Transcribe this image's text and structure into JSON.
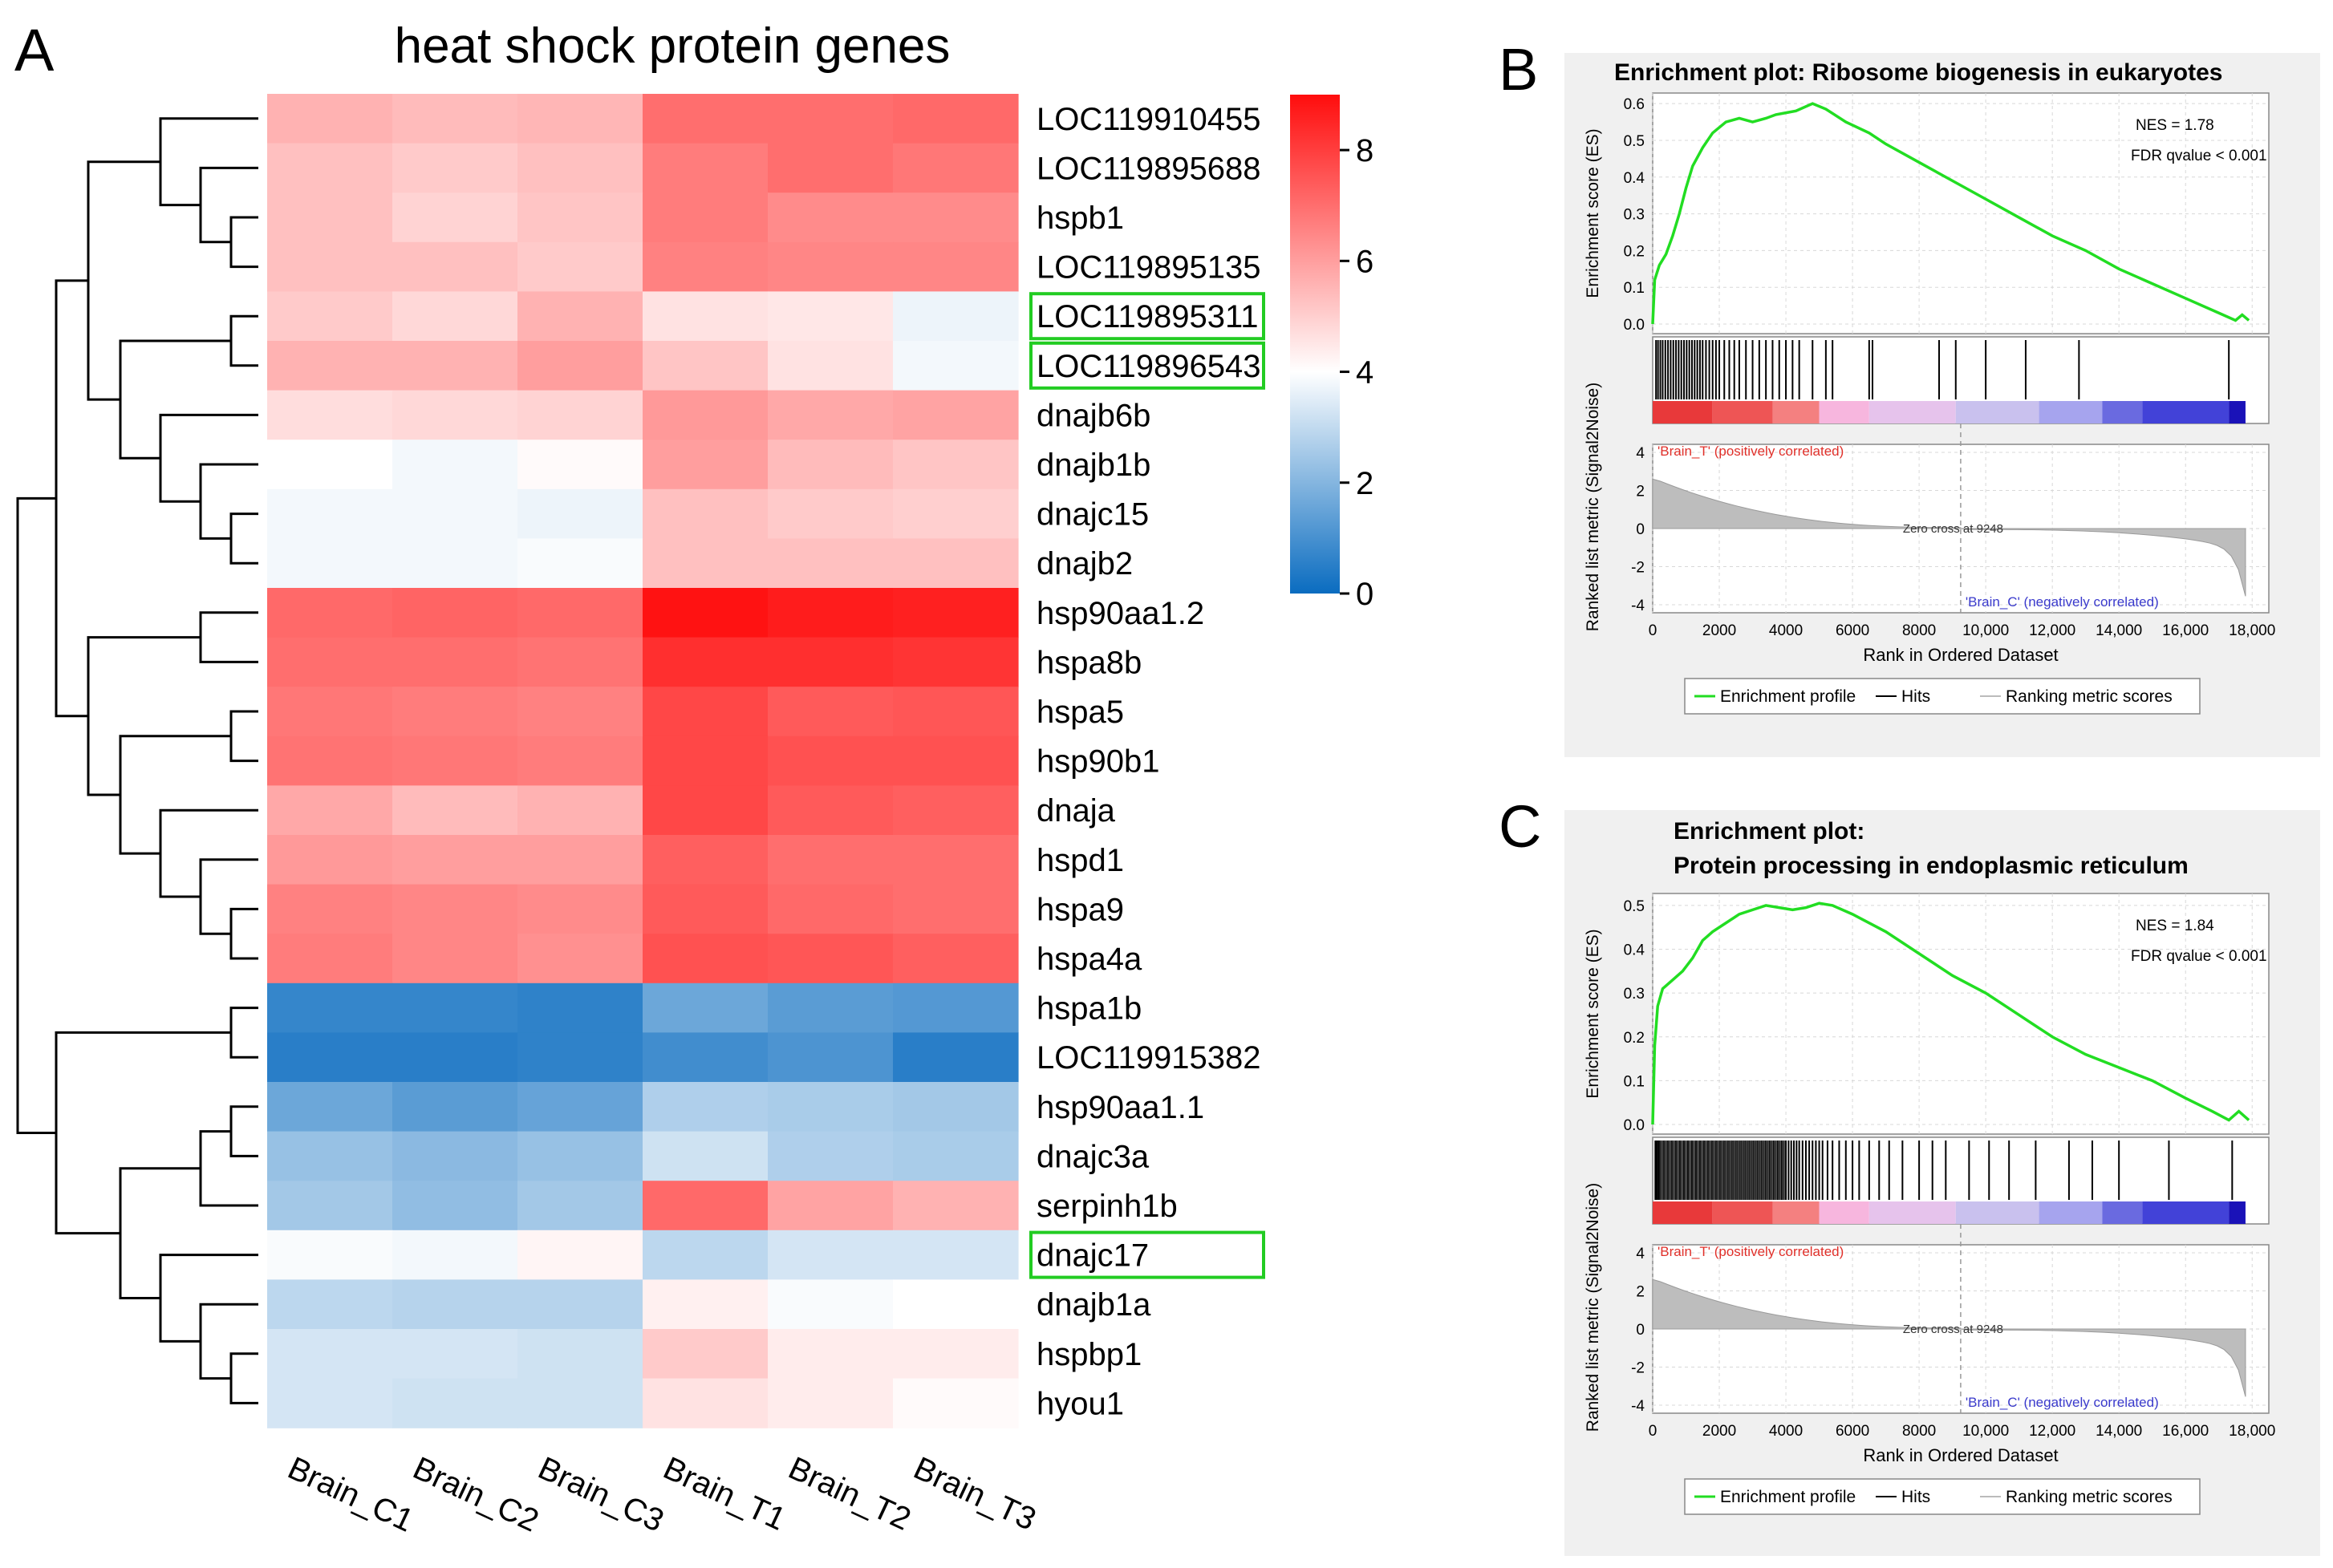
{
  "panel_a": {
    "letter": "A",
    "title": "heat shock protein genes",
    "samples": [
      "Brain_C1",
      "Brain_C2",
      "Brain_C3",
      "Brain_T1",
      "Brain_T2",
      "Brain_T3"
    ],
    "colorbar_ticks": [
      "0",
      "2",
      "4",
      "6",
      "8"
    ],
    "colorbar_range": [
      0,
      9
    ],
    "colors": {
      "low": "#0a6cc0",
      "mid": "#ffffff",
      "high": "#ff0d0d",
      "highlight": "#22cc22"
    },
    "genes": [
      {
        "name": "LOC119910455",
        "values": [
          5.6,
          5.4,
          5.5,
          7.0,
          7.0,
          7.1
        ],
        "highlight": false
      },
      {
        "name": "LOC119895688",
        "values": [
          5.3,
          5.1,
          5.3,
          6.7,
          7.0,
          6.8
        ],
        "highlight": false
      },
      {
        "name": "hspb1",
        "values": [
          5.3,
          4.9,
          5.2,
          6.7,
          6.4,
          6.4
        ],
        "highlight": false
      },
      {
        "name": "LOC119895135",
        "values": [
          5.3,
          5.3,
          5.1,
          6.6,
          6.5,
          6.5
        ],
        "highlight": false
      },
      {
        "name": "LOC119895311",
        "values": [
          5.1,
          4.8,
          5.6,
          4.6,
          4.5,
          3.7
        ],
        "highlight": true
      },
      {
        "name": "LOC119896543",
        "values": [
          5.6,
          5.6,
          6.0,
          5.2,
          4.6,
          3.8
        ],
        "highlight": true
      },
      {
        "name": "dnajb6b",
        "values": [
          4.7,
          4.8,
          4.9,
          6.1,
          5.8,
          5.9
        ],
        "highlight": false
      },
      {
        "name": "dnajb1b",
        "values": [
          4.0,
          3.8,
          4.1,
          6.0,
          5.4,
          5.2
        ],
        "highlight": false
      },
      {
        "name": "dnajc15",
        "values": [
          3.8,
          3.8,
          3.7,
          5.3,
          5.1,
          5.0
        ],
        "highlight": false
      },
      {
        "name": "dnajb2",
        "values": [
          3.8,
          3.8,
          3.9,
          5.3,
          5.3,
          5.3
        ],
        "highlight": false
      },
      {
        "name": "hsp90aa1.2",
        "values": [
          7.1,
          7.2,
          7.1,
          8.9,
          8.7,
          8.6
        ],
        "highlight": false
      },
      {
        "name": "hspa8b",
        "values": [
          7.0,
          7.0,
          6.9,
          8.3,
          8.3,
          8.2
        ],
        "highlight": false
      },
      {
        "name": "hspa5",
        "values": [
          6.8,
          6.7,
          6.6,
          7.8,
          7.4,
          7.5
        ],
        "highlight": false
      },
      {
        "name": "hsp90b1",
        "values": [
          6.9,
          6.8,
          6.7,
          7.8,
          7.6,
          7.6
        ],
        "highlight": false
      },
      {
        "name": "dnaja",
        "values": [
          5.8,
          5.4,
          5.6,
          7.8,
          7.4,
          7.3
        ],
        "highlight": false
      },
      {
        "name": "hspd1",
        "values": [
          6.1,
          6.0,
          6.0,
          7.3,
          7.0,
          7.0
        ],
        "highlight": false
      },
      {
        "name": "hspa9",
        "values": [
          6.6,
          6.5,
          6.4,
          7.4,
          7.1,
          7.0
        ],
        "highlight": false
      },
      {
        "name": "hspa4a",
        "values": [
          6.7,
          6.5,
          6.3,
          7.6,
          7.5,
          7.3
        ],
        "highlight": false
      },
      {
        "name": "hspa1b",
        "values": [
          0.7,
          0.7,
          0.6,
          1.6,
          1.3,
          1.2
        ],
        "highlight": false
      },
      {
        "name": "LOC119915382",
        "values": [
          0.5,
          0.5,
          0.6,
          0.9,
          1.1,
          0.5
        ],
        "highlight": false
      },
      {
        "name": "hsp90aa1.1",
        "values": [
          1.6,
          1.3,
          1.5,
          2.7,
          2.6,
          2.5
        ],
        "highlight": false
      },
      {
        "name": "dnajc3a",
        "values": [
          2.3,
          2.1,
          2.3,
          3.2,
          2.7,
          2.6
        ],
        "highlight": false
      },
      {
        "name": "serpinh1b",
        "values": [
          2.5,
          2.2,
          2.5,
          7.1,
          5.9,
          5.6
        ],
        "highlight": false
      },
      {
        "name": "dnajc17",
        "values": [
          3.9,
          3.8,
          4.2,
          2.9,
          3.3,
          3.3
        ],
        "highlight": true
      },
      {
        "name": "dnajb1a",
        "values": [
          2.9,
          2.8,
          2.8,
          4.3,
          3.9,
          4.0
        ],
        "highlight": false
      },
      {
        "name": "hspbp1",
        "values": [
          3.3,
          3.3,
          3.2,
          5.1,
          4.4,
          4.4
        ],
        "highlight": false
      },
      {
        "name": "hyou1",
        "values": [
          3.3,
          3.2,
          3.2,
          4.6,
          4.4,
          4.1
        ],
        "highlight": false
      }
    ]
  },
  "panel_b": {
    "letter": "B",
    "title_lines": [
      "Enrichment plot: Ribosome biogenesis in eukaryotes"
    ],
    "nes": "NES = 1.78",
    "fdr": "FDR qvalue < 0.001",
    "ylabel_top": "Enrichment score (ES)",
    "ylabel_bottom": "Ranked list metric (Signal2Noise)",
    "xlabel": "Rank in Ordered Dataset",
    "pos_label": "'Brain_T' (positively correlated)",
    "neg_label": "'Brain_C' (negatively correlated)",
    "zero_cross": "Zero cross at 9248",
    "es_ticks": [
      "0.0",
      "0.1",
      "0.2",
      "0.3",
      "0.4",
      "0.5",
      "0.6"
    ],
    "es_range": [
      0,
      0.62
    ],
    "metric_ticks": [
      "4",
      "2",
      "0",
      "-2",
      "-4"
    ],
    "x_ticks": [
      "0",
      "2000",
      "4000",
      "6000",
      "8000",
      "10,000",
      "12,000",
      "14,000",
      "16,000",
      "18,000"
    ],
    "x_range": [
      0,
      18500
    ],
    "legend": [
      "Enrichment profile",
      "Hits",
      "Ranking metric scores"
    ],
    "es_curve": [
      [
        0,
        0
      ],
      [
        60,
        0.12
      ],
      [
        200,
        0.16
      ],
      [
        400,
        0.19
      ],
      [
        600,
        0.24
      ],
      [
        800,
        0.3
      ],
      [
        1000,
        0.37
      ],
      [
        1200,
        0.43
      ],
      [
        1500,
        0.48
      ],
      [
        1800,
        0.52
      ],
      [
        2200,
        0.55
      ],
      [
        2600,
        0.56
      ],
      [
        3000,
        0.55
      ],
      [
        3400,
        0.56
      ],
      [
        3700,
        0.57
      ],
      [
        4000,
        0.575
      ],
      [
        4300,
        0.58
      ],
      [
        4800,
        0.6
      ],
      [
        5200,
        0.585
      ],
      [
        5800,
        0.55
      ],
      [
        6500,
        0.52
      ],
      [
        7000,
        0.49
      ],
      [
        8000,
        0.44
      ],
      [
        9000,
        0.39
      ],
      [
        10000,
        0.34
      ],
      [
        11000,
        0.29
      ],
      [
        12000,
        0.24
      ],
      [
        13000,
        0.2
      ],
      [
        14000,
        0.15
      ],
      [
        15000,
        0.11
      ],
      [
        16000,
        0.07
      ],
      [
        17000,
        0.03
      ],
      [
        17500,
        0.01
      ],
      [
        17700,
        0.025
      ],
      [
        17900,
        0.01
      ]
    ],
    "hits": [
      100,
      160,
      230,
      300,
      380,
      460,
      540,
      620,
      700,
      780,
      860,
      940,
      1020,
      1100,
      1180,
      1260,
      1340,
      1420,
      1500,
      1600,
      1700,
      1800,
      1900,
      2000,
      2150,
      2300,
      2450,
      2600,
      2800,
      3000,
      3200,
      3400,
      3600,
      3800,
      4000,
      4200,
      4400,
      4800,
      5200,
      5400,
      6500,
      6600,
      8600,
      9100,
      10000,
      11200,
      12800,
      17300
    ]
  },
  "panel_c": {
    "letter": "C",
    "title_lines": [
      "Enrichment plot:",
      "Protein processing in endoplasmic reticulum"
    ],
    "nes": "NES = 1.84",
    "fdr": "FDR qvalue < 0.001",
    "ylabel_top": "Enrichment score (ES)",
    "ylabel_bottom": "Ranked list metric (Signal2Noise)",
    "xlabel": "Rank in Ordered Dataset",
    "pos_label": "'Brain_T' (positively correlated)",
    "neg_label": "'Brain_C' (negatively correlated)",
    "zero_cross": "Zero cross at 9248",
    "es_ticks": [
      "0.0",
      "0.1",
      "0.2",
      "0.3",
      "0.4",
      "0.5"
    ],
    "es_range": [
      0,
      0.52
    ],
    "metric_ticks": [
      "4",
      "2",
      "0",
      "-2",
      "-4"
    ],
    "x_ticks": [
      "0",
      "2000",
      "4000",
      "6000",
      "8000",
      "10,000",
      "12,000",
      "14,000",
      "16,000",
      "18,000"
    ],
    "x_range": [
      0,
      18500
    ],
    "legend": [
      "Enrichment profile",
      "Hits",
      "Ranking metric scores"
    ],
    "es_curve": [
      [
        0,
        0
      ],
      [
        60,
        0.18
      ],
      [
        150,
        0.27
      ],
      [
        300,
        0.31
      ],
      [
        600,
        0.33
      ],
      [
        900,
        0.35
      ],
      [
        1200,
        0.38
      ],
      [
        1500,
        0.42
      ],
      [
        1800,
        0.44
      ],
      [
        2200,
        0.46
      ],
      [
        2600,
        0.48
      ],
      [
        3000,
        0.49
      ],
      [
        3400,
        0.5
      ],
      [
        3800,
        0.495
      ],
      [
        4200,
        0.49
      ],
      [
        4600,
        0.495
      ],
      [
        5000,
        0.505
      ],
      [
        5400,
        0.5
      ],
      [
        6000,
        0.48
      ],
      [
        7000,
        0.44
      ],
      [
        8000,
        0.39
      ],
      [
        9000,
        0.34
      ],
      [
        10000,
        0.3
      ],
      [
        11000,
        0.25
      ],
      [
        12000,
        0.2
      ],
      [
        13000,
        0.16
      ],
      [
        14000,
        0.13
      ],
      [
        15000,
        0.1
      ],
      [
        16000,
        0.06
      ],
      [
        16800,
        0.03
      ],
      [
        17300,
        0.01
      ],
      [
        17600,
        0.03
      ],
      [
        17900,
        0.01
      ]
    ],
    "hits": [
      80,
      120,
      170,
      220,
      280,
      340,
      400,
      460,
      520,
      580,
      640,
      700,
      760,
      820,
      880,
      940,
      1000,
      1060,
      1120,
      1180,
      1240,
      1300,
      1360,
      1420,
      1480,
      1540,
      1600,
      1660,
      1720,
      1780,
      1840,
      1900,
      1960,
      2020,
      2080,
      2140,
      2200,
      2260,
      2320,
      2380,
      2440,
      2500,
      2560,
      2620,
      2680,
      2740,
      2800,
      2860,
      2920,
      2980,
      3040,
      3100,
      3160,
      3220,
      3280,
      3340,
      3400,
      3460,
      3520,
      3580,
      3640,
      3700,
      3760,
      3820,
      3880,
      3940,
      4000,
      4080,
      4160,
      4240,
      4320,
      4400,
      4500,
      4600,
      4700,
      4800,
      4900,
      5000,
      5100,
      5250,
      5400,
      5600,
      5800,
      6000,
      6200,
      6500,
      6800,
      7100,
      7500,
      8000,
      8400,
      8800,
      9500,
      10100,
      10700,
      11500,
      12500,
      13200,
      14000,
      15500,
      17400
    ]
  }
}
